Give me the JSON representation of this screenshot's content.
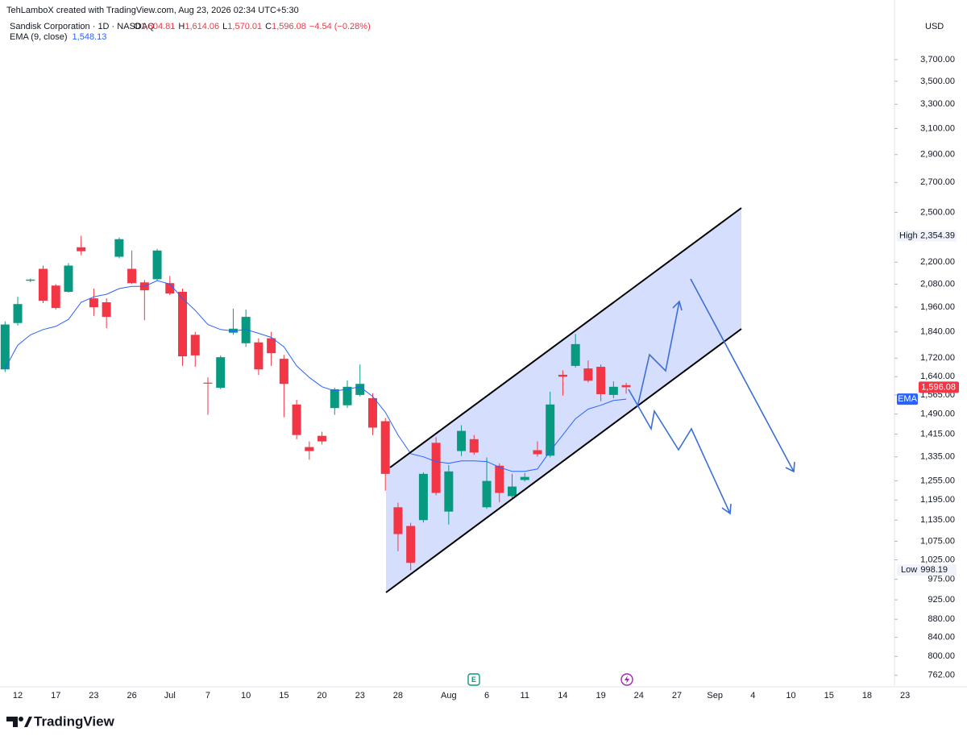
{
  "chart_data": {
    "type": "candlestick",
    "credit": "TehLamboX created with TradingView.com, Aug 23, 2026 02:34 UTC+5:30",
    "title": "Sandisk Corporation · 1D · NASDAQ",
    "ohlc_legend": [
      [
        "O",
        "1,604.81"
      ],
      [
        "H",
        "1,614.06"
      ],
      [
        "L",
        "1,570.01"
      ],
      [
        "C",
        "1,596.08"
      ]
    ],
    "change": "−4.54 (−0.28%)",
    "currency": "USD",
    "watermark": "TradingView",
    "log_scale": true,
    "up_color": "#089981",
    "down_color": "#f23645",
    "categories": [
      null,
      "12",
      null,
      null,
      "17",
      null,
      null,
      "23",
      null,
      null,
      "26",
      null,
      null,
      "Jul",
      null,
      null,
      "7",
      null,
      null,
      "10",
      null,
      null,
      "15",
      null,
      null,
      "20",
      null,
      null,
      "23",
      null,
      null,
      "28",
      null,
      null,
      null,
      "Aug",
      null,
      null,
      "6",
      null,
      null,
      "11",
      null,
      null,
      "14",
      null,
      null,
      "19",
      null,
      null,
      "24",
      null,
      null,
      "27",
      null,
      null,
      "Sep",
      null,
      null,
      "4",
      null,
      null,
      "10",
      null,
      null,
      "15",
      null,
      null,
      "18",
      null,
      null,
      "23"
    ],
    "open": [
      1671,
      1882,
      2098,
      2163,
      2072,
      2039,
      2286,
      2005,
      1985,
      2231,
      2163,
      2089,
      2106,
      2085,
      2039,
      1826,
      1615,
      1594,
      1836,
      1787,
      1791,
      1810,
      1717,
      1527,
      1369,
      1409,
      1513,
      1524,
      1565,
      1552,
      1463,
      1173,
      1118,
      1135,
      1384,
      1160,
      1355,
      1397,
      1173,
      1305,
      1207,
      1258,
      1358,
      1339,
      1648,
      1686,
      1675,
      1682,
      1565,
      1604.81,
      null,
      null,
      null,
      null,
      null,
      null,
      null,
      null,
      null,
      null,
      null,
      null,
      null,
      null,
      null,
      null,
      null,
      null,
      null,
      null,
      null,
      null
    ],
    "high": [
      1890,
      2013,
      2110,
      2181,
      2080,
      2195,
      2354.39,
      2056,
      2005,
      2344,
      2267,
      2102,
      2277,
      2123,
      2056,
      1840,
      1637,
      1731,
      1952,
      1948,
      1810,
      1840,
      1734,
      1546,
      1389,
      1424,
      1594,
      1624,
      1692,
      1572,
      1475,
      1187,
      1127,
      1283,
      1404,
      1307,
      1448,
      1412,
      1333,
      1313,
      1278,
      1281,
      1389,
      1578,
      1667,
      1830,
      1710,
      1692,
      1620,
      1614.06,
      null,
      null,
      null,
      null,
      null,
      null,
      null,
      null,
      null,
      null,
      null,
      null,
      null,
      null,
      null,
      null,
      null,
      null,
      null,
      null,
      null,
      null
    ],
    "low": [
      1660,
      1870,
      2090,
      1981,
      1948,
      2035,
      2240,
      1916,
      1857,
      2222,
      2080,
      1896,
      2098,
      2022,
      1686,
      1682,
      1487,
      1588,
      1826,
      1770,
      1647,
      1686,
      1478,
      1397,
      1325,
      1378,
      1487,
      1514,
      1559,
      1412,
      1224,
      1048,
      998.19,
      1128,
      1210,
      1122,
      1338,
      1342,
      1168,
      1188,
      1200,
      1253,
      1336,
      1333,
      1562,
      1679,
      1616,
      1540,
      1552,
      1570.01,
      null,
      null,
      null,
      null,
      null,
      null,
      null,
      null,
      null,
      null,
      null,
      null,
      null,
      null,
      null,
      null,
      null,
      null,
      null,
      null,
      null,
      null
    ],
    "close": [
      1875,
      1976,
      2104,
      1993,
      1956,
      2181,
      2263,
      1960,
      1912,
      2334,
      2085,
      2047,
      2267,
      2030,
      1728,
      1732,
      1611,
      1724,
      1855,
      1912,
      1671,
      1742,
      1610,
      1412,
      1355,
      1389,
      1588,
      1598,
      1610,
      1439,
      1278,
      1095,
      1017,
      1278,
      1217,
      1286,
      1427,
      1350,
      1255,
      1217,
      1237,
      1268,
      1344,
      1527,
      1640,
      1783,
      1623,
      1568,
      1598,
      1596.08,
      null,
      null,
      null,
      null,
      null,
      null,
      null,
      null,
      null,
      null,
      null,
      null,
      null,
      null,
      null,
      null,
      null,
      null,
      null,
      null,
      null,
      null
    ],
    "ema": {
      "name": "EMA (9, close)",
      "short_name": "EMA",
      "color": "#2962ff",
      "last": {
        "value": 1548.13,
        "label": "1,548.13"
      },
      "values": [
        1675,
        1778,
        1826,
        1851,
        1866,
        1900,
        1985,
        2013,
        2026,
        2056,
        2068,
        2068,
        2098,
        2080,
        2005,
        1944,
        1875,
        1851,
        1844,
        1851,
        1833,
        1814,
        1770,
        1686,
        1637,
        1598,
        1581,
        1588,
        1598,
        1559,
        1497,
        1412,
        1346,
        1335,
        1319,
        1313,
        1321,
        1321,
        1319,
        1300,
        1286,
        1286,
        1294,
        1355,
        1412,
        1472,
        1509,
        1524,
        1543,
        1548.13,
        null,
        null,
        null,
        null,
        null,
        null,
        null,
        null,
        null,
        null,
        null,
        null,
        null,
        null,
        null,
        null,
        null,
        null,
        null,
        null,
        null,
        null
      ]
    },
    "high_marker": {
      "name": "High",
      "value": 2354.39,
      "label": "2,354.39"
    },
    "low_marker": {
      "name": "Low",
      "value": 998.19,
      "label": "998.19"
    },
    "last_price": {
      "value": 1596.08,
      "label": "1,596.08"
    },
    "ylim": [
      743,
      4312
    ],
    "yticks": [
      {
        "value": 3700,
        "label": "3,700.00"
      },
      {
        "value": 3500,
        "label": "3,500.00"
      },
      {
        "value": 3300,
        "label": "3,300.00"
      },
      {
        "value": 3100,
        "label": "3,100.00"
      },
      {
        "value": 2900,
        "label": "2,900.00"
      },
      {
        "value": 2700,
        "label": "2,700.00"
      },
      {
        "value": 2500,
        "label": "2,500.00"
      },
      {
        "value": 2200,
        "label": "2,200.00"
      },
      {
        "value": 2080,
        "label": "2,080.00"
      },
      {
        "value": 1960,
        "label": "1,960.00"
      },
      {
        "value": 1840,
        "label": "1,840.00"
      },
      {
        "value": 1720,
        "label": "1,720.00"
      },
      {
        "value": 1640,
        "label": "1,640.00"
      },
      {
        "value": 1565,
        "label": "1,565.00"
      },
      {
        "value": 1490,
        "label": "1,490.00"
      },
      {
        "value": 1415,
        "label": "1,415.00"
      },
      {
        "value": 1335,
        "label": "1,335.00"
      },
      {
        "value": 1255,
        "label": "1,255.00"
      },
      {
        "value": 1195,
        "label": "1,195.00"
      },
      {
        "value": 1135,
        "label": "1,135.00"
      },
      {
        "value": 1075,
        "label": "1,075.00"
      },
      {
        "value": 1025,
        "label": "1,025.00"
      },
      {
        "value": 975,
        "label": "975.00"
      },
      {
        "value": 925,
        "label": "925.00"
      },
      {
        "value": 880,
        "label": "880.00"
      },
      {
        "value": 840,
        "label": "840.00"
      },
      {
        "value": 800,
        "label": "800.00"
      },
      {
        "value": 762,
        "label": "762.00"
      }
    ]
  }
}
